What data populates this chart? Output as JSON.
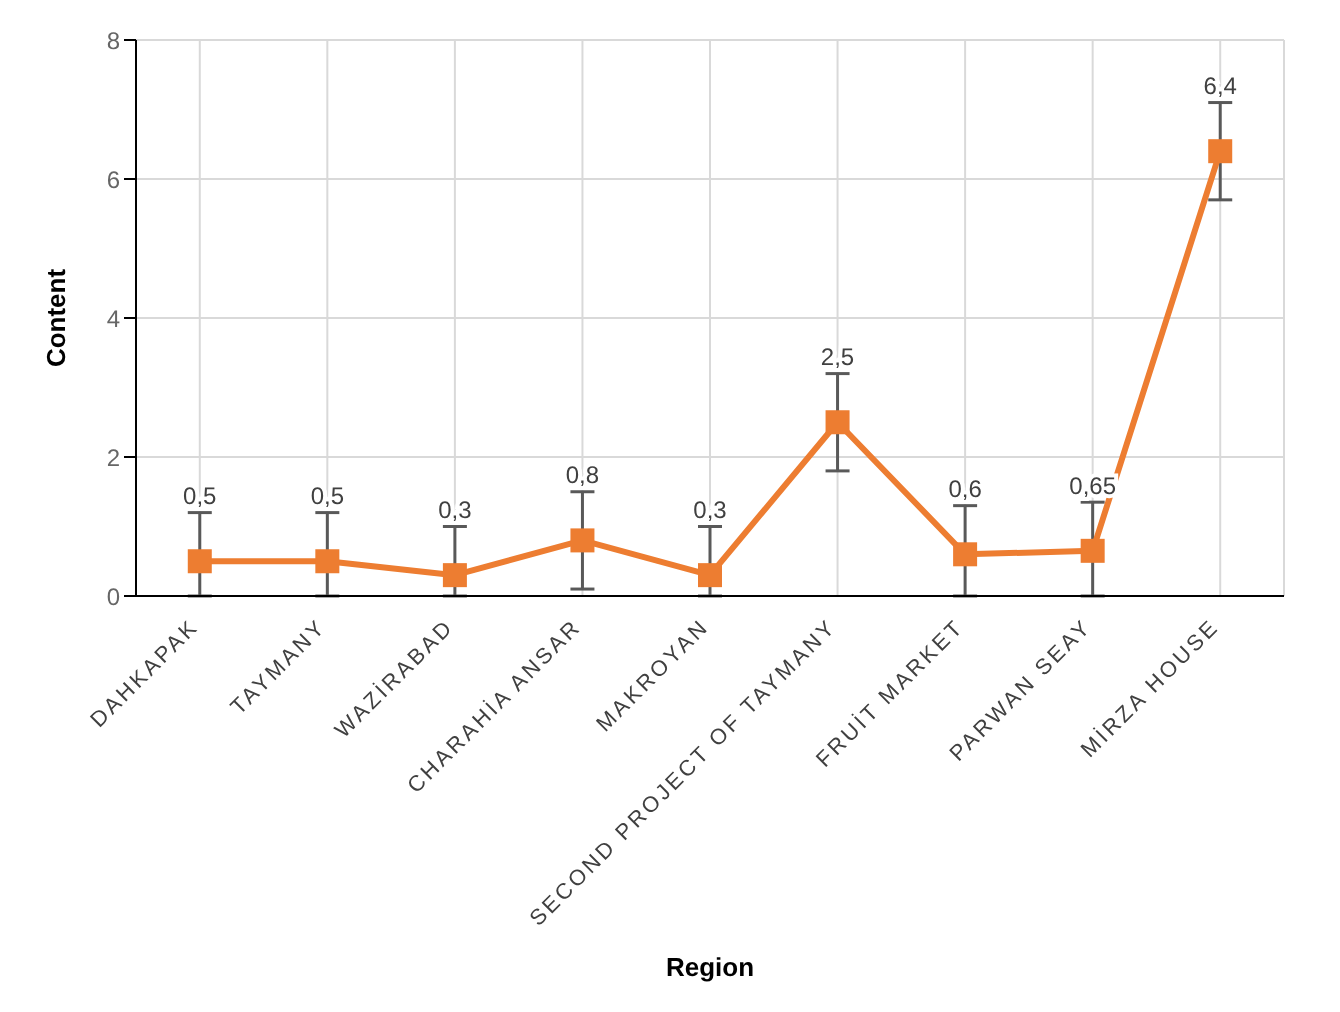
{
  "chart_data": {
    "type": "line",
    "xlabel": "Region",
    "ylabel": "Content",
    "categories": [
      "DAHKAPAK",
      "TAYMANY",
      "WAZİRABAD",
      "CHARAHİA ANSAR",
      "MAKROYAN",
      "SECOND PROJECT OF TAYMANY",
      "FRUİT MARKET",
      "PARWAN SEAY",
      "MİRZA HOUSE"
    ],
    "series": [
      {
        "color": "#ed7d31",
        "values": [
          0.5,
          0.5,
          0.3,
          0.8,
          0.3,
          2.5,
          0.6,
          0.65,
          6.4
        ],
        "errors": [
          [
            0,
            1.2
          ],
          [
            0,
            1.2
          ],
          [
            0,
            1.0
          ],
          0.7,
          [
            0,
            1.0
          ],
          0.7,
          [
            0,
            1.3
          ],
          [
            0,
            1.35
          ],
          0.7
        ],
        "value_labels": [
          "0,5",
          "0,5",
          "0,3",
          "0,8",
          "0,3",
          "2,5",
          "0,6",
          "0,65",
          "6,4"
        ]
      }
    ],
    "ylim": [
      0,
      8
    ],
    "yticks": [
      0,
      2,
      4,
      6,
      8
    ],
    "grid": true,
    "marker": "square",
    "line_style": "solid",
    "legend": false
  }
}
